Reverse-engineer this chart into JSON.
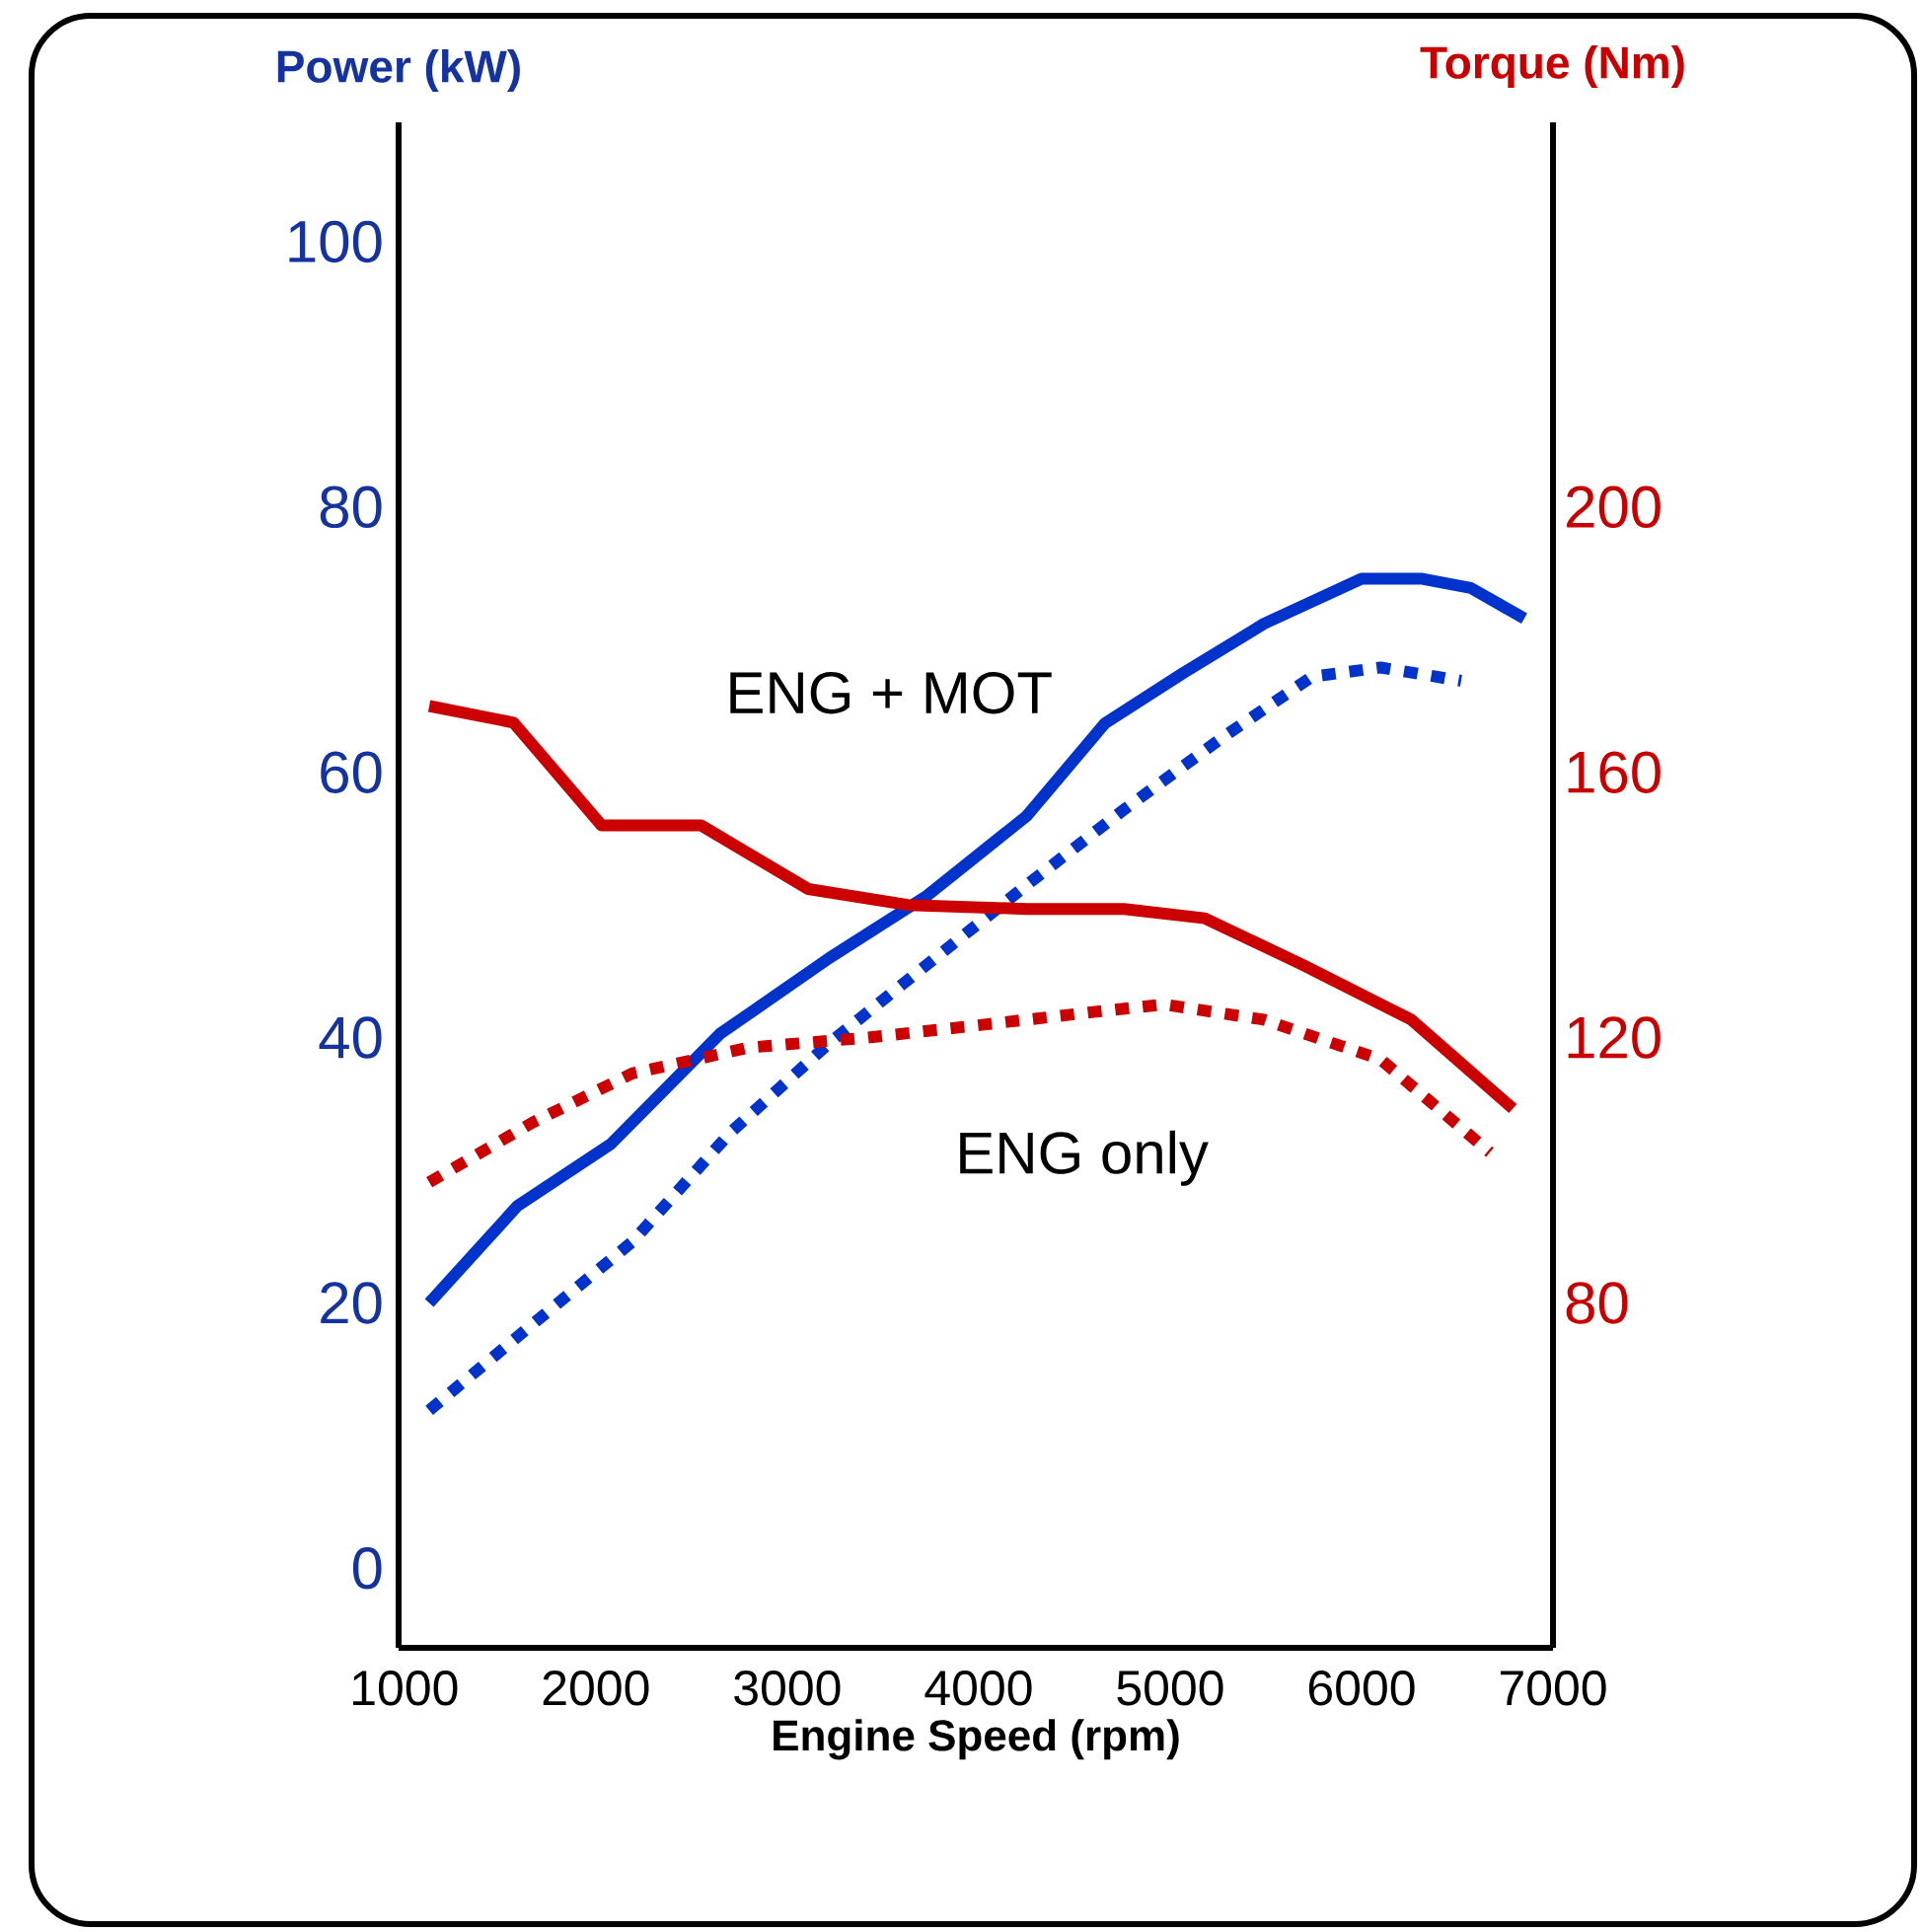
{
  "chart_data": {
    "type": "line",
    "xlabel": "Engine Speed (rpm)",
    "ylabel": "Power (kW)",
    "y2label": "Torque (Nm)",
    "xlim": [
      970,
      7000
    ],
    "xticks": [
      1000,
      2000,
      3000,
      4000,
      5000,
      6000,
      7000
    ],
    "ylim": [
      -6,
      109
    ],
    "yticks": [
      0,
      20,
      40,
      60,
      80,
      100
    ],
    "y2lim": [
      28,
      258
    ],
    "y2ticks": [
      80,
      120,
      160,
      200
    ],
    "series": [
      {
        "color": "#0033cc",
        "line_style": "solid",
        "axis": "y",
        "x": [
          1130,
          1590,
          2080,
          2650,
          3220,
          3730,
          4250,
          4660,
          5070,
          5490,
          6000,
          6310,
          6570,
          6850
        ],
        "values": [
          20,
          27.3,
          32,
          40.3,
          46,
          50.7,
          56.7,
          63.7,
          67.5,
          71.2,
          74.6,
          74.6,
          73.9,
          71.6
        ]
      },
      {
        "color": "#0033cc",
        "line_style": "dotted",
        "axis": "y",
        "x": [
          1130,
          1670,
          2190,
          2700,
          3220,
          3730,
          4250,
          4760,
          5280,
          5740,
          6100,
          6520
        ],
        "values": [
          11.9,
          18.4,
          24.6,
          32.8,
          39.6,
          45.5,
          51.5,
          57.2,
          62.7,
          67.2,
          67.9,
          66.9
        ]
      },
      {
        "color": "#cc0000",
        "line_style": "solid",
        "axis": "y2",
        "x": [
          1130,
          1570,
          2030,
          2550,
          3110,
          3630,
          4250,
          4760,
          5180,
          5690,
          6260,
          6790
        ],
        "values": [
          170,
          167.5,
          152,
          152,
          142.4,
          140,
          139.4,
          139.4,
          138,
          131,
          122.7,
          109.3
        ]
      },
      {
        "color": "#cc0000",
        "line_style": "dotted",
        "axis": "y2",
        "x": [
          1130,
          1670,
          2190,
          2800,
          3420,
          4040,
          4610,
          4970,
          5490,
          6100,
          6670
        ],
        "values": [
          98.2,
          107.2,
          114.6,
          118.5,
          120,
          122,
          123.9,
          125,
          122.7,
          116.7,
          102.7
        ]
      }
    ],
    "annotations": [
      "ENG + MOT",
      "ENG only"
    ]
  }
}
